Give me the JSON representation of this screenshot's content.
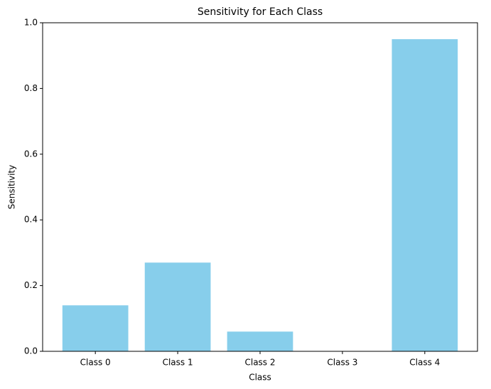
{
  "chart_data": {
    "type": "bar",
    "title": "Sensitivity for Each Class",
    "xlabel": "Class",
    "ylabel": "Sensitivity",
    "categories": [
      "Class 0",
      "Class 1",
      "Class 2",
      "Class 3",
      "Class 4"
    ],
    "values": [
      0.14,
      0.27,
      0.06,
      0,
      0.95
    ],
    "color": "#87ceeb",
    "ylim": [
      0,
      1
    ],
    "yticks": [
      {
        "value": 0,
        "label": "0.0"
      },
      0.2,
      0.4,
      0.6,
      0.8,
      {
        "value": 1,
        "label": "1.0"
      }
    ],
    "grid": false
  }
}
